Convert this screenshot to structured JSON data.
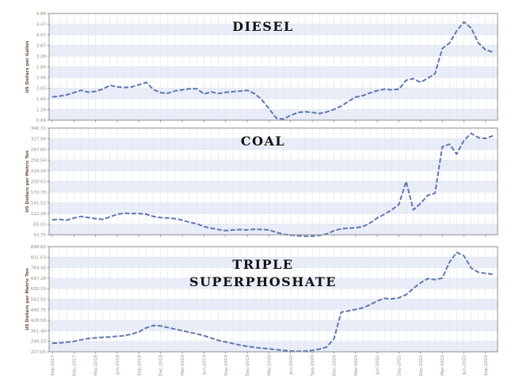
{
  "figure": {
    "background": "#ffffff",
    "styles": {
      "line_color": "#5c78b0",
      "band_color": "#e9edf8",
      "grid_color": "#e2e6f2",
      "border_color": "#8f8f8f",
      "tick_label_color": "#9b8a78",
      "axis_title_color": "#6e4b3a",
      "title_color": "#111111",
      "tick_mark_color": "#777777"
    }
  },
  "chart_data": [
    {
      "type": "line",
      "title_lines": [
        "DIESEL"
      ],
      "ylabel": "US Dollars per Gallon",
      "y_ticks": [
        4.88,
        4.47,
        4.07,
        3.67,
        3.26,
        2.86,
        2.45,
        2.05,
        1.64,
        1.24,
        0.84
      ],
      "ylim": [
        0.84,
        4.88
      ],
      "x_start": "Sep-2017",
      "frequency": "monthly",
      "values": [
        1.72,
        1.75,
        1.8,
        1.88,
        1.97,
        1.9,
        1.93,
        2.02,
        2.16,
        2.1,
        2.08,
        2.1,
        2.18,
        2.27,
        2.0,
        1.88,
        1.86,
        1.95,
        1.99,
        2.03,
        2.03,
        1.83,
        1.91,
        1.85,
        1.89,
        1.92,
        1.94,
        1.97,
        1.85,
        1.62,
        1.28,
        0.92,
        0.88,
        1.02,
        1.13,
        1.16,
        1.13,
        1.09,
        1.15,
        1.25,
        1.37,
        1.55,
        1.71,
        1.77,
        1.87,
        1.96,
        2.01,
        1.99,
        2.01,
        2.35,
        2.41,
        2.27,
        2.43,
        2.6,
        3.55,
        3.76,
        4.22,
        4.56,
        4.33,
        3.76,
        3.5,
        3.42
      ]
    },
    {
      "type": "line",
      "title_lines": [
        "COAL"
      ],
      "ylabel": "US Dollars per Metric Ton",
      "y_ticks": [
        346.31,
        317.06,
        287.8,
        258.54,
        229.29,
        200.03,
        170.78,
        141.52,
        112.26,
        83.01,
        53.75
      ],
      "ylim": [
        53.75,
        346.31
      ],
      "x_start": "Sep-2017",
      "frequency": "monthly",
      "values": [
        95,
        96,
        94,
        100,
        104,
        101,
        98,
        96,
        103,
        110,
        113,
        112,
        112,
        110,
        104,
        101,
        100,
        98,
        94,
        88,
        84,
        76,
        72,
        68,
        65,
        67,
        68,
        67,
        69,
        68,
        67,
        61,
        55,
        53,
        51,
        50,
        50,
        52,
        56,
        65,
        70,
        72,
        73,
        76,
        86,
        100,
        110,
        122,
        137,
        200,
        122,
        140,
        162,
        168,
        295,
        302,
        275,
        312,
        332,
        320,
        318,
        325
      ]
    },
    {
      "type": "line",
      "title_lines": [
        "TRIPLE",
        "SUPERPHOSHATE"
      ],
      "ylabel": "US Dollars per Metric Ton",
      "y_ticks": [
        898.8,
        831.63,
        764.45,
        697.28,
        630.1,
        562.93,
        495.75,
        428.58,
        361.4,
        294.23,
        227.05
      ],
      "ylim": [
        227.05,
        898.8
      ],
      "x_start": "Sep-2017",
      "frequency": "monthly",
      "values": [
        282,
        284,
        288,
        294,
        304,
        312,
        316,
        320,
        322,
        326,
        330,
        340,
        355,
        380,
        395,
        392,
        382,
        372,
        362,
        352,
        342,
        330,
        315,
        300,
        290,
        280,
        270,
        262,
        256,
        250,
        246,
        240,
        236,
        232,
        230,
        232,
        236,
        244,
        258,
        310,
        480,
        488,
        498,
        508,
        528,
        552,
        568,
        565,
        572,
        592,
        632,
        668,
        695,
        688,
        698,
        800,
        862,
        840,
        762,
        735,
        728,
        722
      ]
    }
  ],
  "x_tick_labels": [
    "Sep-2017",
    "Dec-2017",
    "Mar-2018",
    "Jun-2018",
    "Sep-2018",
    "Dec-2018",
    "Mar-2019",
    "Jun-2019",
    "Sep-2019",
    "Dec-2019",
    "Mar-2020",
    "Jun-2020",
    "Sep-2020",
    "Dec-2020",
    "Mar-2021",
    "Jun-2021",
    "Sep-2021",
    "Dec-2021",
    "Mar-2022",
    "Jun-2022",
    "Sep-2022"
  ]
}
